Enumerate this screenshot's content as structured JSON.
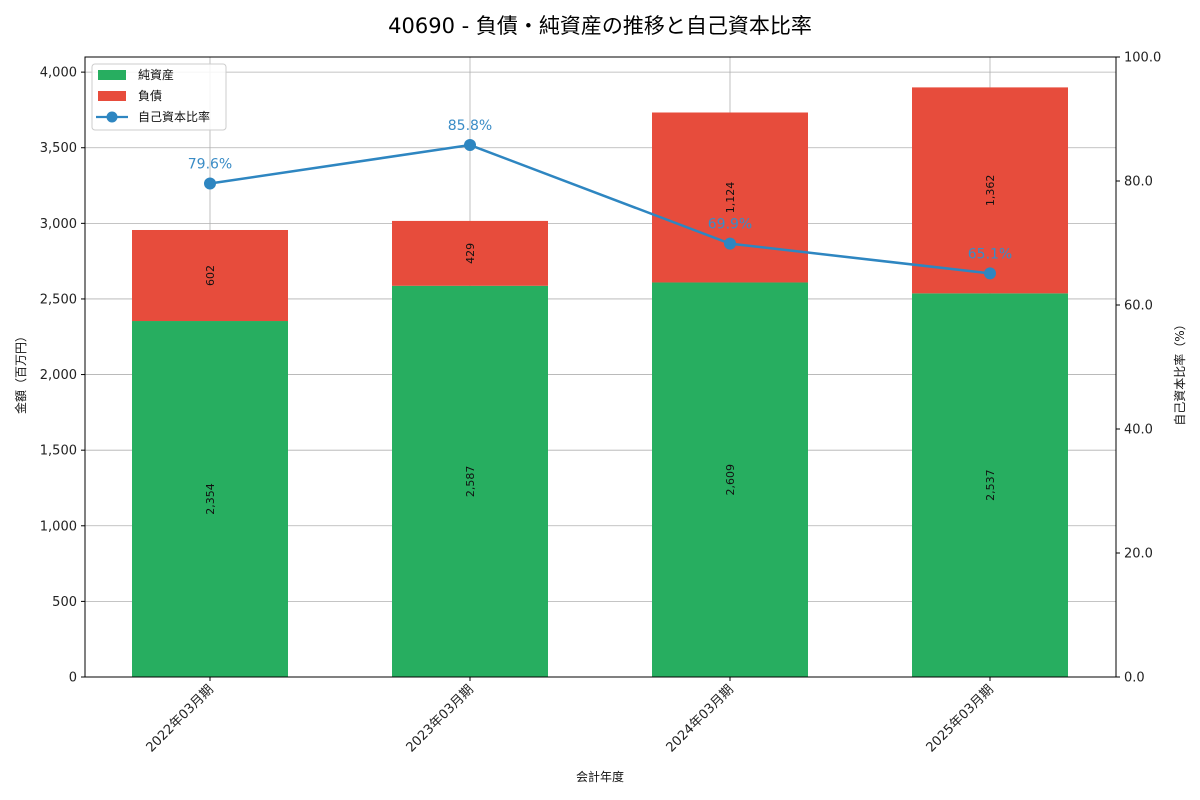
{
  "chart_data": {
    "type": "bar",
    "subtype": "stacked-bar-with-line-secondary-axis",
    "title": "40690 - 負債・純資産の推移と自己資本比率",
    "xlabel": "会計年度",
    "ylabel": "金額（百万円）",
    "y2label": "自己資本比率（%）",
    "categories": [
      "2022年03月期",
      "2023年03月期",
      "2024年03月期",
      "2025年03月期"
    ],
    "series": [
      {
        "name": "純資産",
        "type": "bar",
        "axis": "left",
        "color": "#27ae60",
        "values": [
          2354,
          2587,
          2609,
          2537
        ],
        "labels": [
          "2,354",
          "2,587",
          "2,609",
          "2,537"
        ]
      },
      {
        "name": "負債",
        "type": "bar",
        "axis": "left",
        "color": "#e74c3c",
        "values": [
          602,
          429,
          1124,
          1362
        ],
        "labels": [
          "602",
          "429",
          "1,124",
          "1,362"
        ]
      },
      {
        "name": "自己資本比率",
        "type": "line",
        "axis": "right",
        "color": "#2e86c1",
        "values": [
          79.6,
          85.8,
          69.9,
          65.1
        ],
        "labels": [
          "79.6%",
          "85.8%",
          "69.9%",
          "65.1%"
        ]
      }
    ],
    "ylim": [
      0,
      4100
    ],
    "y2lim": [
      0,
      100
    ],
    "yticks": [
      0,
      500,
      1000,
      1500,
      2000,
      2500,
      3000,
      3500,
      4000
    ],
    "ytick_labels": [
      "0",
      "500",
      "1,000",
      "1,500",
      "2,000",
      "2,500",
      "3,000",
      "3,500",
      "4,000"
    ],
    "y2ticks": [
      0,
      20,
      40,
      60,
      80,
      100
    ],
    "y2tick_labels": [
      "0.0",
      "20.0",
      "40.0",
      "60.0",
      "80.0",
      "100.0"
    ],
    "grid": true,
    "legend_position": "upper left"
  }
}
